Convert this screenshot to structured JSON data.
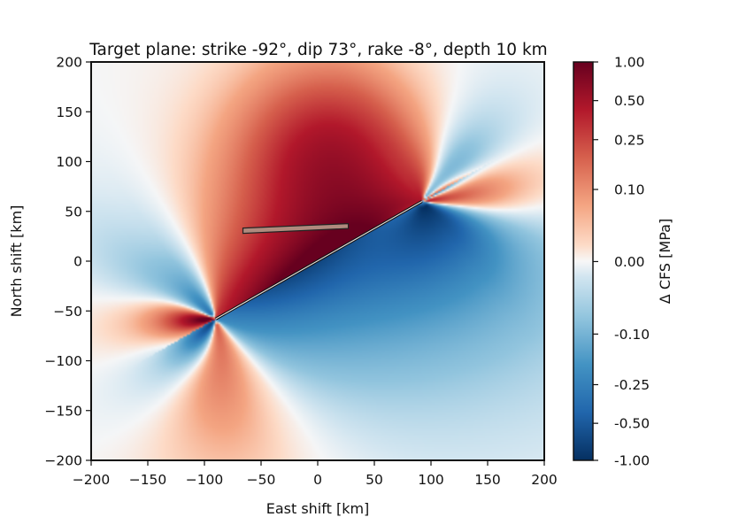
{
  "chart_data": {
    "type": "heatmap",
    "title": "Target plane: strike -92$^\\circ$, dip 73$^\\circ$, rake -8$^\\circ$, depth 10 km",
    "title_display": "Target plane: strike -92°, dip 73°, rake -8°, depth 10 km",
    "xlabel": "East shift [km]",
    "ylabel": "North shift [km]",
    "xlim": [
      -200,
      200
    ],
    "ylim": [
      -200,
      200
    ],
    "xticks": [
      -200,
      -150,
      -100,
      -50,
      0,
      50,
      100,
      150,
      200
    ],
    "xtick_labels": [
      "−200",
      "−150",
      "−100",
      "−50",
      "0",
      "50",
      "100",
      "150",
      "200"
    ],
    "yticks": [
      200,
      150,
      100,
      50,
      0,
      -50,
      -100,
      -150,
      -200
    ],
    "ytick_labels": [
      "200",
      "150",
      "100",
      "50",
      "0",
      "−50",
      "−100",
      "−150",
      "−200"
    ],
    "colormap": "RdBu_r",
    "colorbar": {
      "label": "Δ CFS [MPa]",
      "ticks": [
        1.0,
        0.5,
        0.25,
        0.1,
        0.0,
        -0.1,
        -0.25,
        -0.5,
        -1.0
      ],
      "tick_labels": [
        "1.00",
        "0.50",
        "0.25",
        "0.10",
        "0.00",
        "-0.10",
        "-0.25",
        "-0.50",
        "-1.00"
      ]
    },
    "source_fault": {
      "trace_start": [
        -90,
        -58
      ],
      "trace_end": [
        92,
        60
      ]
    },
    "receiver_fault": {
      "trace_start": [
        -66,
        31
      ],
      "trace_end": [
        27,
        35
      ]
    },
    "colors": {
      "high": "#67001f",
      "low": "#053061",
      "zero": "#f7f7f7",
      "receiver_fill": "#b08a7e"
    }
  }
}
